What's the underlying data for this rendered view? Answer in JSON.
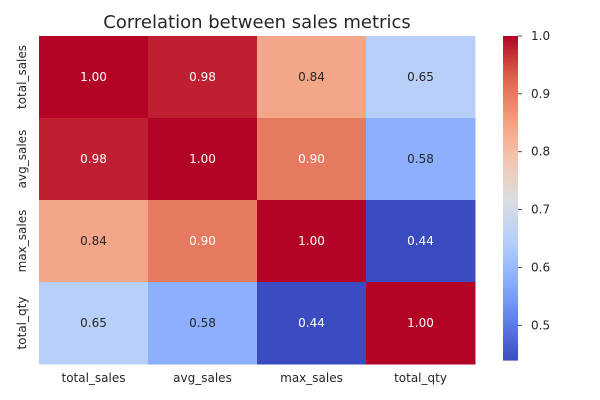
{
  "chart_data": {
    "type": "heatmap",
    "title": "Correlation between sales metrics",
    "rows": [
      "total_sales",
      "avg_sales",
      "max_sales",
      "total_qty"
    ],
    "columns": [
      "total_sales",
      "avg_sales",
      "max_sales",
      "total_qty"
    ],
    "values": [
      [
        1.0,
        0.98,
        0.84,
        0.65
      ],
      [
        0.98,
        1.0,
        0.9,
        0.58
      ],
      [
        0.84,
        0.9,
        1.0,
        0.44
      ],
      [
        0.65,
        0.58,
        0.44,
        1.0
      ]
    ],
    "value_labels": [
      [
        "1.00",
        "0.98",
        "0.84",
        "0.65"
      ],
      [
        "0.98",
        "1.00",
        "0.90",
        "0.58"
      ],
      [
        "0.84",
        "0.90",
        "1.00",
        "0.44"
      ],
      [
        "0.65",
        "0.58",
        "0.44",
        "1.00"
      ]
    ],
    "colormap": "coolwarm",
    "color_range": [
      0.44,
      1.0
    ],
    "colorbar_ticks": [
      "0.5",
      "0.6",
      "0.7",
      "0.8",
      "0.9",
      "1.0"
    ],
    "colorbar_tick_values": [
      0.5,
      0.6,
      0.7,
      0.8,
      0.9,
      1.0
    ],
    "colors": {
      "low": "#3b4cc0",
      "mid": "#dddddd",
      "high": "#b40426",
      "text_dark": "#262626",
      "text_light": "#ffffff"
    },
    "grid": false,
    "legend": "colorbar-right"
  }
}
